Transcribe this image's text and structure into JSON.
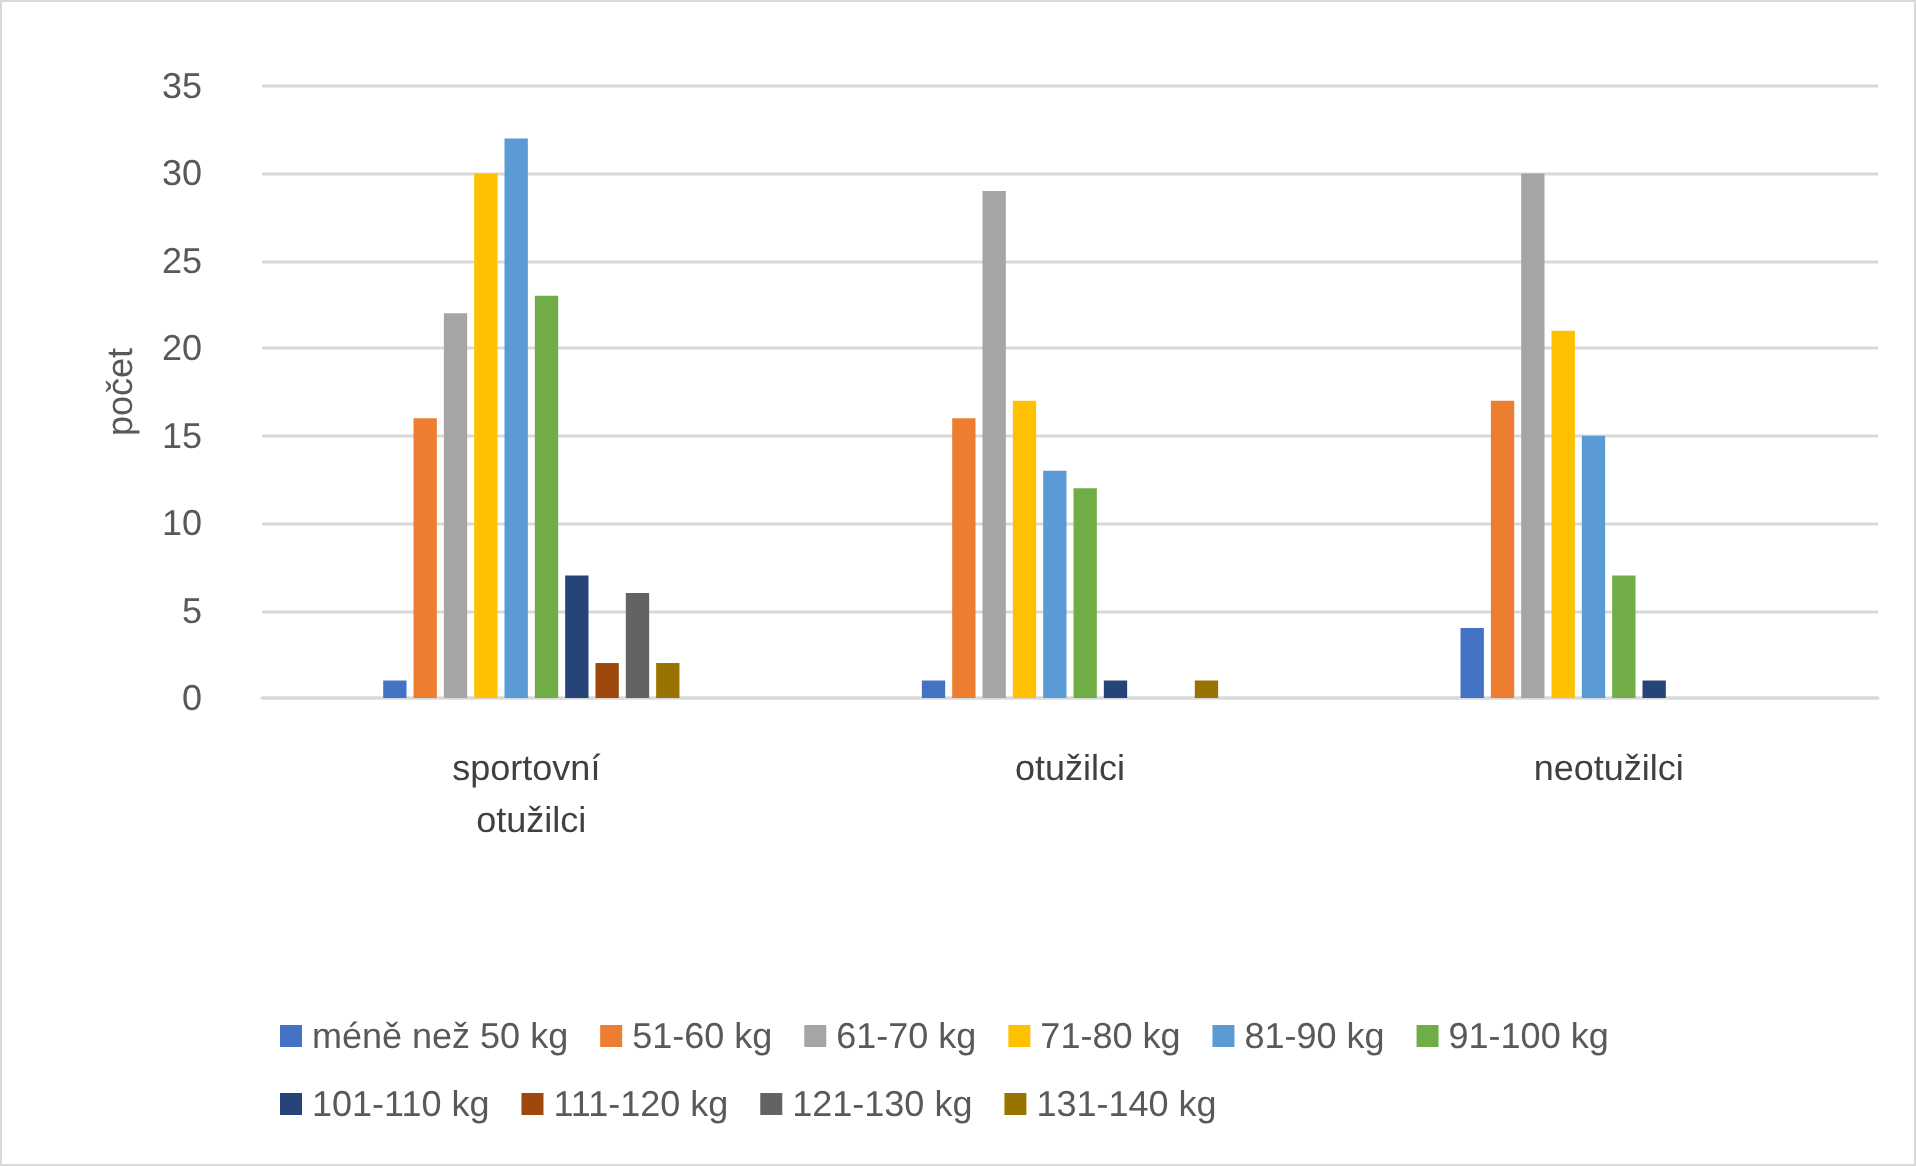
{
  "chart_data": {
    "type": "bar",
    "ylabel": "počet",
    "categories": [
      "sportovní otužilci",
      "otužilci",
      "neotužilci"
    ],
    "series": [
      {
        "name": "méně než 50 kg",
        "color": "#4472c4",
        "values": [
          1,
          1,
          4
        ]
      },
      {
        "name": "51-60 kg",
        "color": "#ed7d31",
        "values": [
          16,
          16,
          17
        ]
      },
      {
        "name": "61-70 kg",
        "color": "#a5a5a5",
        "values": [
          22,
          29,
          30
        ]
      },
      {
        "name": "71-80 kg",
        "color": "#ffc000",
        "values": [
          30,
          17,
          21
        ]
      },
      {
        "name": "81-90 kg",
        "color": "#5b9bd5",
        "values": [
          32,
          13,
          15
        ]
      },
      {
        "name": "91-100 kg",
        "color": "#70ad47",
        "values": [
          23,
          12,
          7
        ]
      },
      {
        "name": "101-110 kg",
        "color": "#264478",
        "values": [
          7,
          1,
          1
        ]
      },
      {
        "name": "111-120 kg",
        "color": "#9e480e",
        "values": [
          2,
          0,
          0
        ]
      },
      {
        "name": "121-130 kg",
        "color": "#636363",
        "values": [
          6,
          0,
          0
        ]
      },
      {
        "name": "131-140 kg",
        "color": "#997300",
        "values": [
          2,
          1,
          0
        ]
      }
    ],
    "ylim": [
      0,
      35
    ],
    "yticks": [
      0,
      5,
      10,
      15,
      20,
      25,
      30,
      35
    ],
    "grid": "y",
    "legend": "bottom"
  }
}
